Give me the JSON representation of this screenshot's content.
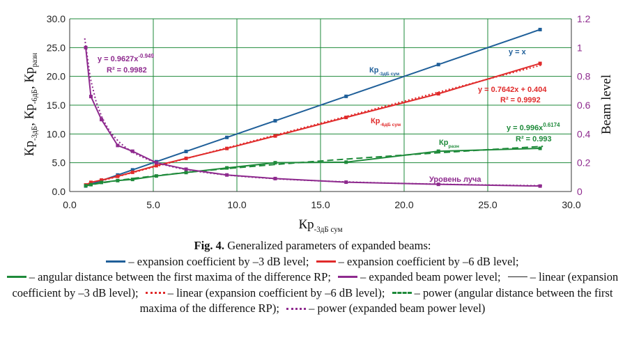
{
  "chart_data": {
    "type": "line",
    "x": [
      0.96,
      1.27,
      1.9,
      2.87,
      3.76,
      5.18,
      6.96,
      9.4,
      12.29,
      16.53,
      22.05,
      28.13
    ],
    "series": [
      {
        "axis": "left",
        "color": "#1f5f99",
        "values": [
          0.96,
          1.27,
          1.9,
          2.87,
          3.76,
          5.18,
          6.96,
          9.4,
          12.29,
          16.53,
          22.05,
          28.13
        ]
      },
      {
        "axis": "left",
        "color": "#e02a2a",
        "values": [
          1.14,
          1.59,
          1.99,
          2.64,
          3.34,
          4.49,
          5.76,
          7.48,
          9.65,
          12.87,
          16.98,
          22.25
        ]
      },
      {
        "axis": "left",
        "color": "#1e8a3a",
        "values": [
          1.0,
          1.2,
          1.58,
          1.9,
          2.1,
          2.7,
          3.3,
          4.1,
          5.0,
          5.1,
          7.0,
          7.5
        ]
      },
      {
        "axis": "right",
        "color": "#8e2a8e",
        "values": [
          1.0,
          0.66,
          0.5,
          0.32,
          0.28,
          0.2,
          0.155,
          0.115,
          0.09,
          0.065,
          0.05,
          0.038
        ]
      }
    ],
    "trendlines": [
      {
        "of": 1,
        "kind": "linear",
        "slope": 0.7642,
        "intercept": 0.404,
        "style": "dotted",
        "color": "#e02a2a"
      },
      {
        "of": 2,
        "kind": "power",
        "coef": 0.996,
        "exp": 0.6174,
        "style": "dashed",
        "color": "#1e8a3a"
      },
      {
        "of": 3,
        "kind": "power",
        "coef": 0.9627,
        "exp": -0.949,
        "scale": 0.04,
        "style": "dotted",
        "color": "#8e2a8e"
      }
    ],
    "xlim": [
      0,
      30
    ],
    "xticks": [
      "0.0",
      "5.0",
      "10.0",
      "15.0",
      "20.0",
      "25.0",
      "30.0"
    ],
    "ylim": [
      0,
      30
    ],
    "yticks": [
      "0.0",
      "5.0",
      "10.0",
      "15.0",
      "20.0",
      "25.0",
      "30.0"
    ],
    "y2lim": [
      0,
      1.2
    ],
    "y2ticks": [
      "0",
      "0.2",
      "0.4",
      "0.6",
      "0.8",
      "1",
      "1.2"
    ],
    "grid": true,
    "xlabel": {
      "main": "Кр",
      "sub": "-3дБ сум"
    },
    "ylabel": [
      {
        "main": "Кр",
        "sub": "-3дБ"
      },
      {
        "main": ", Кр",
        "sub": "-6дБ"
      },
      {
        "main": ", Кр",
        "sub": "разн"
      }
    ],
    "y2label": "Beam level",
    "annotations": {
      "yx": "y = x",
      "s1_name": {
        "main": "Кр",
        "sub": "-3дБ сум"
      },
      "s1_eq": "y = 0.7642x + 0.404",
      "s1_r2": "R² = 0.9992",
      "s1_label": {
        "main": "Кр",
        "sub": "-6дБ сум"
      },
      "s2_eq": {
        "main": "y = 0.996x",
        "sup": "0.6174"
      },
      "s2_r2": "R² = 0.993",
      "s2_label": {
        "main": "Кр",
        "sub": "разн"
      },
      "s3_eq": {
        "main": "y = 0.9627x",
        "sup": "-0.949"
      },
      "s3_r2": "R² = 0.9982",
      "s3_label": "Уровень луча"
    }
  },
  "caption": {
    "fig": "Fig. 4.",
    "title": "Generalized parameters of expanded beams:",
    "l1": "– expansion coefficient by –3 dB level;",
    "l2": "– expansion coefficient by –6 dB level;",
    "l3": "– angular distance between the first maxima of the difference RP;",
    "l4": "– expanded beam power level;",
    "l5": "– linear (expansion coefficient by –3 dB level);",
    "l6": "– linear (expansion coefficient by –6 dB level);",
    "l7": "– power (angular distance between the first maxima of the difference RP);",
    "l8": "– power (expanded beam power level)"
  }
}
